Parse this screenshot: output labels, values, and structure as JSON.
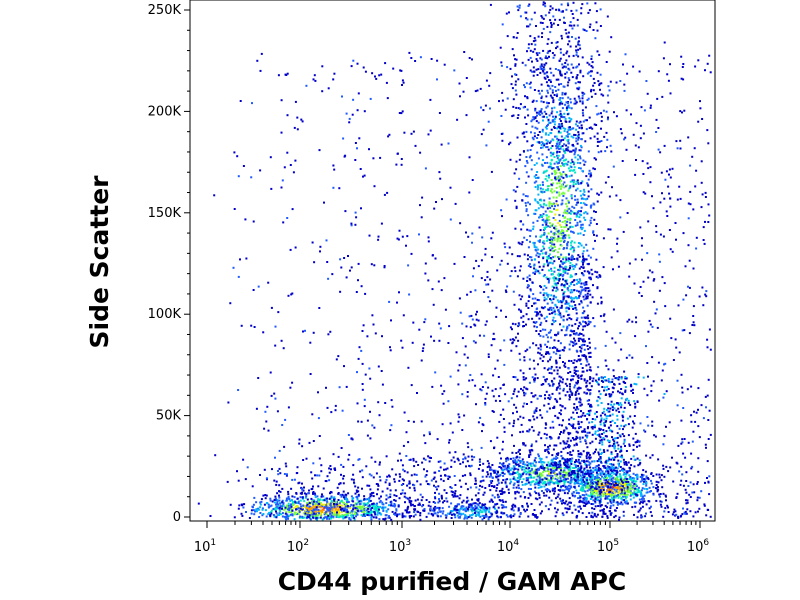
{
  "chart_data": {
    "type": "scatter",
    "subtype": "flow-cytometry density dot plot (biexponential x, linear y)",
    "xlabel": "CD44 purified / GAM APC",
    "ylabel": "Side Scatter",
    "x_scale": "log",
    "x_ticks": [
      {
        "base": "10",
        "exp": "1"
      },
      {
        "base": "10",
        "exp": "2"
      },
      {
        "base": "10",
        "exp": "3"
      },
      {
        "base": "10",
        "exp": "4"
      },
      {
        "base": "10",
        "exp": "5"
      },
      {
        "base": "10",
        "exp": "6"
      }
    ],
    "y_ticks": [
      "0",
      "50K",
      "100K",
      "150K",
      "200K",
      "250K"
    ],
    "ylim": [
      0,
      262144
    ],
    "xlim_log10": [
      0.8,
      6.0
    ],
    "density_colors": [
      "#0000c8",
      "#1e5aff",
      "#00b4ff",
      "#00e6c8",
      "#78ff3c",
      "#f0f000",
      "#ffa000",
      "#ff2000"
    ],
    "populations": [
      {
        "name": "low CD44, low SSC",
        "x_center": 170,
        "y_center": 4500,
        "peak_density": "high"
      },
      {
        "name": "CD44 ~10^3.6, low SSC",
        "x_center": 4500,
        "y_center": 3000,
        "peak_density": "low"
      },
      {
        "name": "CD44 ~2.5x10^4, low SSC",
        "x_center": 25000,
        "y_center": 22000,
        "peak_density": "medium"
      },
      {
        "name": "CD44 ~10^5, low SSC",
        "x_center": 100000,
        "y_center": 15000,
        "peak_density": "high"
      },
      {
        "name": "CD44 ~3x10^4, high SSC",
        "x_center": 30000,
        "y_center": 150000,
        "peak_density": "medium"
      }
    ]
  }
}
